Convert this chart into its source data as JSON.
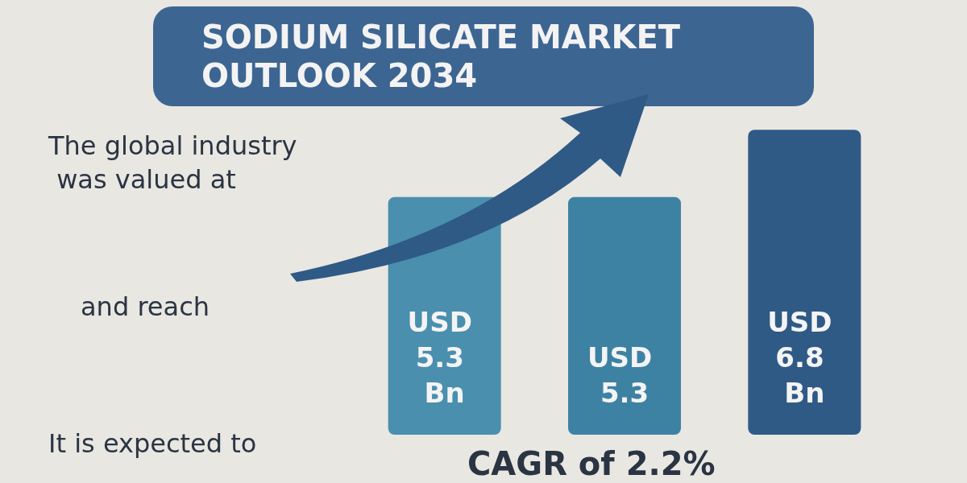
{
  "chart_data": {
    "type": "bar",
    "title": "SODIUM SILICATE MARKET OUTLOOK 2034",
    "categories": [
      null,
      null,
      null
    ],
    "values": [
      5.3,
      5.3,
      6.8
    ],
    "colors": [
      "#4a8fae",
      "#3e82a3",
      "#2f5a86"
    ],
    "value_labels": [
      "USD 5.3 Bn",
      "USD 5.3",
      "USD 6.8 Bn"
    ],
    "annotations": [
      "The global industry was valued at",
      "and reach",
      "It is expected to",
      "CAGR of 2.2%"
    ]
  }
}
